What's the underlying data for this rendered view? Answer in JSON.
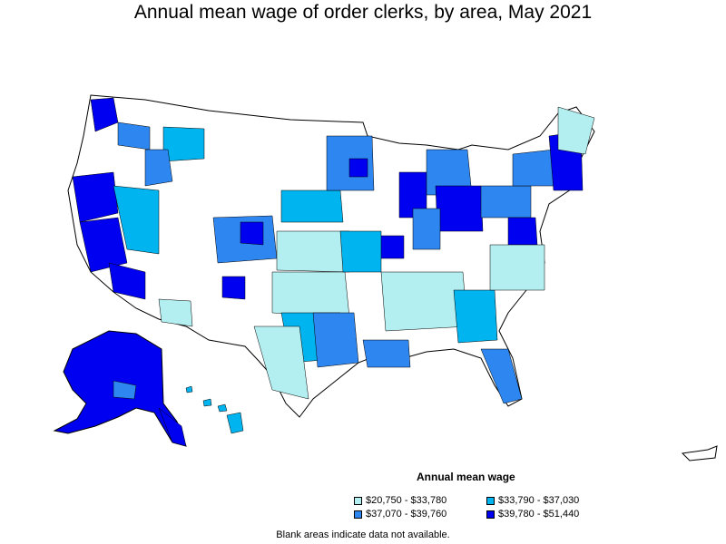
{
  "title": "Annual mean wage of order clerks, by area, May 2021",
  "legend": {
    "title": "Annual mean wage",
    "items": [
      {
        "label": "$20,750 - $33,780",
        "color": "#b3eef0"
      },
      {
        "label": "$33,790 - $37,030",
        "color": "#00b4f0"
      },
      {
        "label": "$37,070 - $39,760",
        "color": "#2e86f0"
      },
      {
        "label": "$39,780 - $51,440",
        "color": "#0000f0"
      }
    ]
  },
  "note": "Blank areas indicate data not available."
}
